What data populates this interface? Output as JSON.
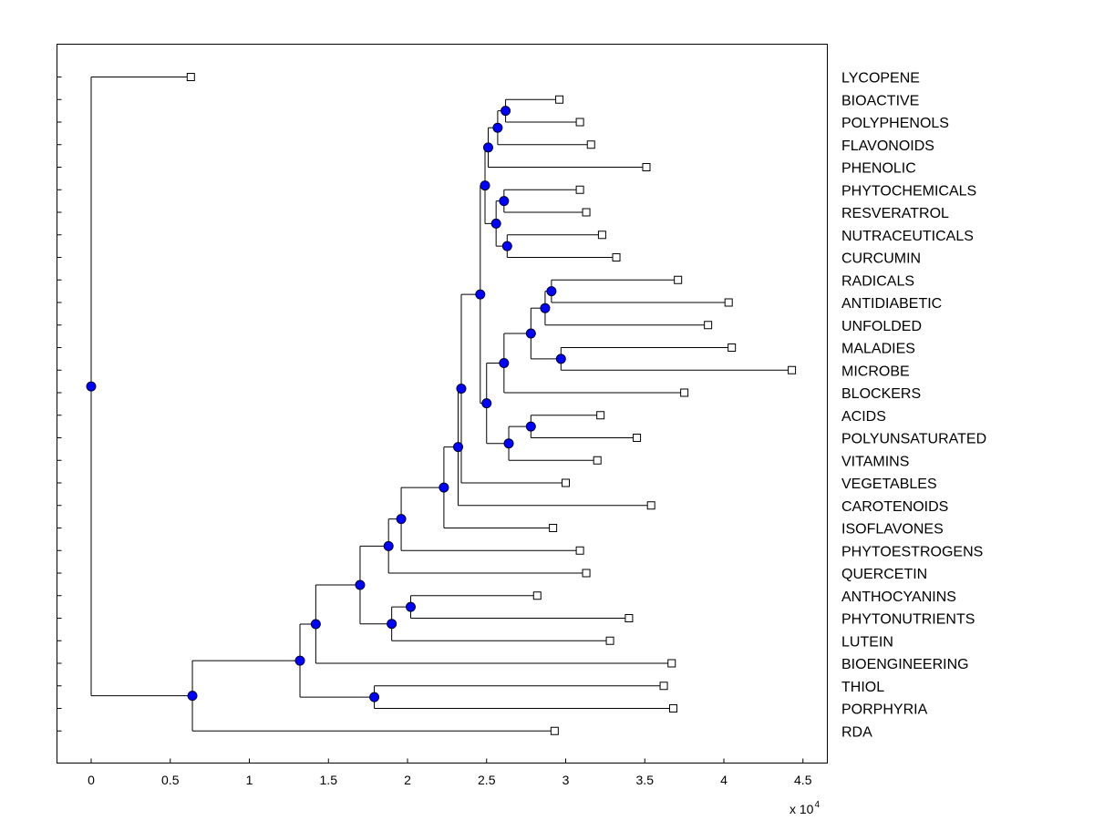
{
  "chart_data": {
    "type": "dendrogram",
    "title": "",
    "xlabel": "",
    "ylabel": "",
    "x_scale_base": "x 10",
    "x_scale_exponent": "4",
    "xlim": [
      -0.22,
      4.6
    ],
    "xticks": [
      0,
      0.5,
      1,
      1.5,
      2,
      2.5,
      3,
      3.5,
      4,
      4.5
    ],
    "xtick_labels": [
      "0",
      "0.5",
      "1",
      "1.5",
      "2",
      "2.5",
      "3",
      "3.5",
      "4",
      "4.5"
    ],
    "leaves": [
      {
        "label": "LYCOPENE",
        "x": 0.63
      },
      {
        "label": "BIOACTIVE",
        "x": 2.96
      },
      {
        "label": "POLYPHENOLS",
        "x": 3.09
      },
      {
        "label": "FLAVONOIDS",
        "x": 3.16
      },
      {
        "label": "PHENOLIC",
        "x": 3.51
      },
      {
        "label": "PHYTOCHEMICALS",
        "x": 3.09
      },
      {
        "label": "RESVERATROL",
        "x": 3.13
      },
      {
        "label": "NUTRACEUTICALS",
        "x": 3.23
      },
      {
        "label": "CURCUMIN",
        "x": 3.32
      },
      {
        "label": "RADICALS",
        "x": 3.71
      },
      {
        "label": "ANTIDIABETIC",
        "x": 4.03
      },
      {
        "label": "UNFOLDED",
        "x": 3.9
      },
      {
        "label": "MALADIES",
        "x": 4.05
      },
      {
        "label": "MICROBE",
        "x": 4.43
      },
      {
        "label": "BLOCKERS",
        "x": 3.75
      },
      {
        "label": "ACIDS",
        "x": 3.22
      },
      {
        "label": "POLYUNSATURATED",
        "x": 3.45
      },
      {
        "label": "VITAMINS",
        "x": 3.2
      },
      {
        "label": "VEGETABLES",
        "x": 3.0
      },
      {
        "label": "CAROTENOIDS",
        "x": 3.54
      },
      {
        "label": "ISOFLAVONES",
        "x": 2.92
      },
      {
        "label": "PHYTOESTROGENS",
        "x": 3.09
      },
      {
        "label": "QUERCETIN",
        "x": 3.13
      },
      {
        "label": "ANTHOCYANINS",
        "x": 2.82
      },
      {
        "label": "PHYTONUTRIENTS",
        "x": 3.4
      },
      {
        "label": "LUTEIN",
        "x": 3.28
      },
      {
        "label": "BIOENGINEERING",
        "x": 3.67
      },
      {
        "label": "THIOL",
        "x": 3.62
      },
      {
        "label": "PORPHYRIA",
        "x": 3.68
      },
      {
        "label": "RDA",
        "x": 2.93
      }
    ],
    "internal_nodes": [
      {
        "id": "n01",
        "x": 2.62,
        "children": [
          "L1",
          "L2"
        ]
      },
      {
        "id": "n02",
        "x": 2.57,
        "children": [
          "n01",
          "L3"
        ]
      },
      {
        "id": "n03",
        "x": 2.51,
        "children": [
          "n02",
          "L4"
        ]
      },
      {
        "id": "n04",
        "x": 2.61,
        "children": [
          "L5",
          "L6"
        ]
      },
      {
        "id": "n05",
        "x": 2.63,
        "children": [
          "L7",
          "L8"
        ]
      },
      {
        "id": "n06",
        "x": 2.56,
        "children": [
          "n04",
          "n05"
        ]
      },
      {
        "id": "n07",
        "x": 2.49,
        "children": [
          "n03",
          "n06"
        ]
      },
      {
        "id": "n08",
        "x": 2.91,
        "children": [
          "L9",
          "L10"
        ]
      },
      {
        "id": "n09",
        "x": 2.87,
        "children": [
          "n08",
          "L11"
        ]
      },
      {
        "id": "n10",
        "x": 2.97,
        "children": [
          "L12",
          "L13"
        ]
      },
      {
        "id": "n11",
        "x": 2.78,
        "children": [
          "n09",
          "n10"
        ]
      },
      {
        "id": "n12",
        "x": 2.61,
        "children": [
          "n11",
          "L14"
        ]
      },
      {
        "id": "n13",
        "x": 2.78,
        "children": [
          "L15",
          "L16"
        ]
      },
      {
        "id": "n14",
        "x": 2.64,
        "children": [
          "n13",
          "L17"
        ]
      },
      {
        "id": "n15",
        "x": 2.5,
        "children": [
          "n12",
          "n14"
        ]
      },
      {
        "id": "n16",
        "x": 2.46,
        "children": [
          "n07",
          "n15"
        ]
      },
      {
        "id": "n17",
        "x": 2.34,
        "children": [
          "n16",
          "L18"
        ]
      },
      {
        "id": "n18",
        "x": 2.32,
        "children": [
          "n17",
          "L19"
        ]
      },
      {
        "id": "n19",
        "x": 2.23,
        "children": [
          "n18",
          "L20"
        ]
      },
      {
        "id": "n20",
        "x": 1.96,
        "children": [
          "n19",
          "L21"
        ]
      },
      {
        "id": "n21",
        "x": 1.88,
        "children": [
          "n20",
          "L22"
        ]
      },
      {
        "id": "n22",
        "x": 2.02,
        "children": [
          "L23",
          "L24"
        ]
      },
      {
        "id": "n23",
        "x": 1.9,
        "children": [
          "n22",
          "L25"
        ]
      },
      {
        "id": "n24",
        "x": 1.7,
        "children": [
          "n21",
          "n23"
        ]
      },
      {
        "id": "n25",
        "x": 1.42,
        "children": [
          "n24",
          "L26"
        ]
      },
      {
        "id": "n26",
        "x": 1.79,
        "children": [
          "L27",
          "L28"
        ]
      },
      {
        "id": "n27",
        "x": 1.32,
        "children": [
          "n25",
          "n26"
        ]
      },
      {
        "id": "n28",
        "x": 0.64,
        "children": [
          "n27",
          "L29"
        ]
      },
      {
        "id": "n29",
        "x": 0.0,
        "children": [
          "L0",
          "n28"
        ]
      }
    ]
  }
}
